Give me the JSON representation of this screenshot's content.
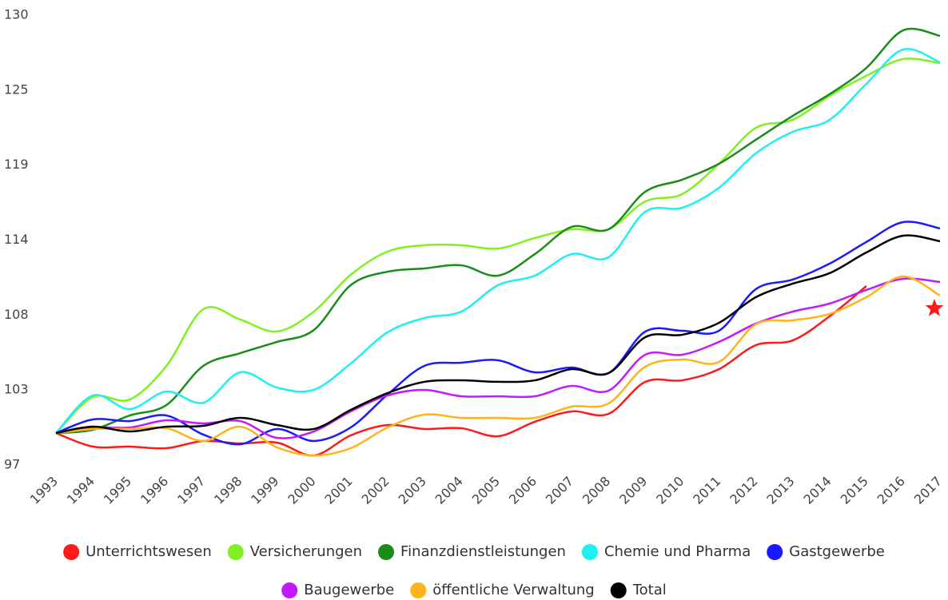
{
  "chart_data": {
    "type": "line",
    "x": [
      "1993",
      "1994",
      "1995",
      "1996",
      "1997",
      "1998",
      "1999",
      "2000",
      "2001",
      "2002",
      "2003",
      "2004",
      "2005",
      "2006",
      "2007",
      "2008",
      "2009",
      "2010",
      "2011",
      "2012",
      "2013",
      "2014",
      "2015",
      "2016",
      "2017"
    ],
    "ylim": [
      97,
      130
    ],
    "yticks": [
      97,
      {
        "value": 102.5,
        "label": "103"
      },
      108,
      {
        "value": 113.5,
        "label": "114"
      },
      119,
      {
        "value": 124.5,
        "label": "125"
      },
      130
    ],
    "grid": false,
    "legend": "bottom",
    "series": [
      {
        "name": "Unterrichtswesen",
        "color": "#ff1a1a",
        "values": [
          99.34,
          98.35,
          98.35,
          98.23,
          98.76,
          98.58,
          98.64,
          97.7,
          99.17,
          99.93,
          99.64,
          99.7,
          99.11,
          100.17,
          100.93,
          100.75,
          103.1,
          103.21,
          104.03,
          105.79,
          106.14,
          107.9,
          110.13,
          null,
          108.49
        ]
      },
      {
        "name": "Versicherungen",
        "color": "#80f020",
        "values": [
          99.34,
          101.98,
          101.8,
          104.27,
          108.43,
          107.67,
          106.79,
          108.25,
          110.95,
          112.65,
          113.12,
          113.12,
          112.88,
          113.65,
          114.29,
          114.29,
          116.34,
          116.87,
          119.1,
          121.73,
          122.32,
          124.08,
          125.55,
          126.78,
          126.48
        ]
      },
      {
        "name": "Finanzdienstleistungen",
        "color": "#198c19",
        "values": [
          99.34,
          99.58,
          100.63,
          101.4,
          104.27,
          105.2,
          106.03,
          106.9,
          110.19,
          111.18,
          111.42,
          111.65,
          110.89,
          112.47,
          114.47,
          114.29,
          117.05,
          117.93,
          119.1,
          120.86,
          122.61,
          124.2,
          126.13,
          128.89,
          128.48
        ]
      },
      {
        "name": "Chemie und Pharma",
        "color": "#1ef0f0",
        "values": [
          99.34,
          102.1,
          101.1,
          102.39,
          101.57,
          103.8,
          102.68,
          102.51,
          104.44,
          106.73,
          107.78,
          108.25,
          110.19,
          110.89,
          112.47,
          112.24,
          115.58,
          115.87,
          117.34,
          119.86,
          121.44,
          122.32,
          124.96,
          127.48,
          126.54
        ]
      },
      {
        "name": "Gastgewerbe",
        "color": "#1a1aff",
        "values": [
          99.34,
          100.34,
          100.22,
          100.63,
          99.23,
          98.52,
          99.64,
          98.76,
          99.75,
          102.16,
          104.27,
          104.5,
          104.68,
          103.8,
          104.15,
          103.74,
          106.79,
          106.85,
          106.85,
          109.9,
          110.6,
          111.77,
          113.36,
          114.82,
          114.35
        ]
      },
      {
        "name": "Baugewerbe",
        "color": "#c21aff",
        "values": [
          99.34,
          99.75,
          99.75,
          100.28,
          100.05,
          100.22,
          98.99,
          99.46,
          100.93,
          102.1,
          102.51,
          102.04,
          102.04,
          102.04,
          102.8,
          102.45,
          105.09,
          105.09,
          106.03,
          107.37,
          108.25,
          108.84,
          109.84,
          110.66,
          110.42
        ]
      },
      {
        "name": "öffentliche Verwaltung",
        "color": "#ffb31a",
        "values": [
          99.34,
          99.64,
          99.64,
          99.7,
          98.76,
          99.81,
          98.29,
          97.7,
          98.23,
          99.75,
          100.69,
          100.46,
          100.46,
          100.46,
          101.28,
          101.51,
          104.21,
          104.74,
          104.56,
          107.32,
          107.61,
          108.08,
          109.31,
          110.83,
          109.43
        ]
      },
      {
        "name": "Total",
        "color": "#000000",
        "values": [
          99.34,
          99.81,
          99.46,
          99.81,
          99.87,
          100.46,
          99.93,
          99.64,
          101.04,
          102.27,
          103.1,
          103.21,
          103.1,
          103.21,
          104.03,
          103.74,
          106.38,
          106.55,
          107.43,
          109.31,
          110.3,
          111.07,
          112.59,
          113.82,
          113.41
        ]
      }
    ]
  }
}
